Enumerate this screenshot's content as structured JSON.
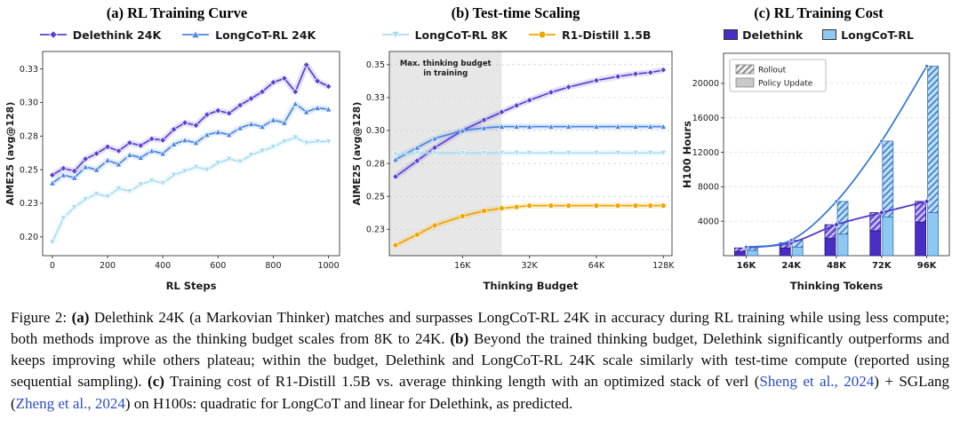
{
  "accent_colors": {
    "delethink_purple": "#5a3fd2",
    "delethink_bar_purple": "#4a2dc2",
    "longcot_blue": "#4a86e0",
    "longcot_light_blue": "#a8ddf0",
    "longcot_bar_blue": "#8ec9f2",
    "r1_orange": "#f0a500",
    "trend_blue": "#3a7bd5"
  },
  "legend_ab": [
    {
      "label": "Delethink 24K",
      "marker": "diamond",
      "color": "#5a3fd2"
    },
    {
      "label": "LongCoT-RL 24K",
      "marker": "triangle-up",
      "color": "#4a86e0"
    },
    {
      "label": "LongCoT-RL 8K",
      "marker": "triangle-down",
      "color": "#a8ddf0"
    },
    {
      "label": "R1-Distill 1.5B",
      "marker": "circle",
      "color": "#f0a500"
    }
  ],
  "legend_c": [
    {
      "label": "Delethink",
      "color": "#4a2dc2"
    },
    {
      "label": "LongCoT-RL",
      "color": "#8ec9f2"
    }
  ],
  "chart_data": [
    {
      "type": "line",
      "title": "(a) RL Training Curve",
      "xlabel": "RL Steps",
      "ylabel": "AIME25 (avg@128)",
      "xlim": [
        -35,
        1040
      ],
      "ylim": [
        0.186,
        0.338
      ],
      "grid": false,
      "band": true,
      "xticks": [
        0,
        200,
        400,
        600,
        800,
        1000
      ],
      "ytick_values": [
        0.2,
        0.225,
        0.25,
        0.275,
        0.3,
        0.325
      ],
      "ytick_labels": [
        "0.20",
        "0.23",
        "0.25",
        "0.28",
        "0.30",
        "0.33"
      ],
      "x": [
        0,
        40,
        80,
        120,
        160,
        200,
        240,
        280,
        320,
        360,
        400,
        440,
        480,
        520,
        560,
        600,
        640,
        680,
        720,
        760,
        800,
        840,
        880,
        920,
        960,
        1000
      ],
      "series": [
        {
          "name": "Delethink 24K",
          "color": "#5a3fd2",
          "marker": "diamond",
          "values": [
            0.246,
            0.251,
            0.249,
            0.258,
            0.262,
            0.267,
            0.264,
            0.27,
            0.268,
            0.273,
            0.272,
            0.28,
            0.285,
            0.283,
            0.291,
            0.294,
            0.292,
            0.298,
            0.303,
            0.308,
            0.315,
            0.318,
            0.308,
            0.328,
            0.316,
            0.312
          ]
        },
        {
          "name": "LongCoT-RL 24K",
          "color": "#4a86e0",
          "marker": "triangle-up",
          "values": [
            0.24,
            0.246,
            0.244,
            0.252,
            0.25,
            0.257,
            0.254,
            0.261,
            0.259,
            0.264,
            0.262,
            0.269,
            0.272,
            0.27,
            0.276,
            0.278,
            0.276,
            0.281,
            0.284,
            0.282,
            0.287,
            0.285,
            0.299,
            0.293,
            0.296,
            0.295
          ]
        },
        {
          "name": "LongCoT-RL 8K",
          "color": "#a8ddf0",
          "marker": "triangle-down",
          "values": [
            0.196,
            0.214,
            0.222,
            0.228,
            0.232,
            0.23,
            0.236,
            0.234,
            0.239,
            0.242,
            0.24,
            0.246,
            0.249,
            0.252,
            0.25,
            0.255,
            0.258,
            0.256,
            0.261,
            0.264,
            0.267,
            0.271,
            0.274,
            0.27,
            0.271,
            0.271
          ]
        }
      ]
    },
    {
      "type": "line",
      "title": "(b) Test-time Scaling",
      "xlabel": "Thinking Budget",
      "ylabel": "AIME25 (avg@128)",
      "xscale": "log2",
      "xlim": [
        7.5,
        140
      ],
      "ylim": [
        0.205,
        0.36
      ],
      "grid": true,
      "band": true,
      "xticks": [
        16,
        32,
        64,
        128
      ],
      "xtick_labels": [
        "16K",
        "32K",
        "64K",
        "128K"
      ],
      "ytick_values": [
        0.225,
        0.25,
        0.275,
        0.3,
        0.325,
        0.35
      ],
      "ytick_labels": [
        "0.23",
        "0.25",
        "0.28",
        "0.30",
        "0.33",
        "0.35"
      ],
      "shaded_region": {
        "x0": 7.5,
        "x1": 24,
        "label_lines": [
          "Max. thinking budget",
          "in training"
        ]
      },
      "x": [
        8,
        10,
        12,
        16,
        20,
        24,
        28,
        32,
        40,
        48,
        64,
        80,
        96,
        112,
        128
      ],
      "series": [
        {
          "name": "Delethink 24K",
          "color": "#5a3fd2",
          "marker": "diamond",
          "values": [
            0.265,
            0.277,
            0.287,
            0.3,
            0.308,
            0.314,
            0.319,
            0.323,
            0.329,
            0.333,
            0.338,
            0.341,
            0.343,
            0.344,
            0.346
          ]
        },
        {
          "name": "LongCoT-RL 24K",
          "color": "#4a86e0",
          "marker": "triangle-up",
          "values": [
            0.278,
            0.287,
            0.294,
            0.3,
            0.302,
            0.303,
            0.303,
            0.303,
            0.303,
            0.303,
            0.303,
            0.303,
            0.303,
            0.303,
            0.303
          ]
        },
        {
          "name": "LongCoT-RL 8K",
          "color": "#a8ddf0",
          "marker": "triangle-down",
          "values": [
            0.282,
            0.283,
            0.283,
            0.283,
            0.283,
            0.283,
            0.283,
            0.283,
            0.283,
            0.283,
            0.283,
            0.283,
            0.283,
            0.283,
            0.283
          ]
        },
        {
          "name": "R1-Distill 1.5B",
          "color": "#f0a500",
          "marker": "circle",
          "values": [
            0.213,
            0.221,
            0.228,
            0.235,
            0.239,
            0.241,
            0.242,
            0.243,
            0.243,
            0.243,
            0.243,
            0.243,
            0.243,
            0.243,
            0.243
          ]
        }
      ]
    },
    {
      "type": "bar",
      "title": "(c) RL Training Cost",
      "xlabel": "Thinking Tokens",
      "ylabel": "H100 Hours",
      "categories": [
        "16K",
        "24K",
        "48K",
        "72K",
        "96K"
      ],
      "ylim": [
        0,
        23500
      ],
      "ytick_values": [
        4000,
        8000,
        12000,
        16000,
        20000
      ],
      "bar_legend": [
        {
          "label": "Rollout",
          "style": "hatched"
        },
        {
          "label": "Policy Update",
          "style": "solid"
        }
      ],
      "series": [
        {
          "name": "Delethink",
          "color": "#4a2dc2",
          "edge": "#2a1580",
          "hatch": "hatch-delethink",
          "policy_update": [
            500,
            900,
            2000,
            2900,
            3900
          ],
          "rollout": [
            400,
            600,
            1600,
            2100,
            2400
          ]
        },
        {
          "name": "LongCoT-RL",
          "color": "#8ec9f2",
          "edge": "#3a6fb0",
          "hatch": "hatch-longcot",
          "policy_update": [
            600,
            1000,
            2500,
            4500,
            5000
          ],
          "rollout": [
            400,
            800,
            3800,
            8800,
            17000
          ]
        }
      ],
      "trend_lines": [
        {
          "name": "Delethink",
          "color": "#5436c8",
          "values": [
            900,
            1500,
            3600,
            5000,
            6300
          ]
        },
        {
          "name": "LongCoT-RL",
          "color": "#3a7bd5",
          "values": [
            1000,
            1800,
            6300,
            13300,
            22000
          ]
        }
      ]
    }
  ],
  "caption": {
    "citation_color": "#2b4bc8",
    "segments": [
      {
        "text": "Figure 2: "
      },
      {
        "text": "(a)",
        "bold": true
      },
      {
        "text": " Delethink 24K (a Markovian Thinker) matches and surpasses LongCoT-RL 24K in accuracy during RL training while using less compute; both methods improve as the thinking budget scales from 8K to 24K. "
      },
      {
        "text": "(b)",
        "bold": true
      },
      {
        "text": " Beyond the trained thinking budget, Delethink significantly outperforms and keeps improving while others plateau; within the budget, Delethink and LongCoT-RL 24K scale similarly with test-time compute (reported using sequential sampling). "
      },
      {
        "text": "(c)",
        "bold": true
      },
      {
        "text": " Training cost of R1-Distill 1.5B vs. average thinking length with an optimized stack of verl ("
      },
      {
        "text": "Sheng et al., 2024",
        "link": true
      },
      {
        "text": ") + SGLang ("
      },
      {
        "text": "Zheng et al., 2024",
        "link": true
      },
      {
        "text": ") on H100s: quadratic for LongCoT and linear for Delethink, as predicted."
      }
    ]
  }
}
